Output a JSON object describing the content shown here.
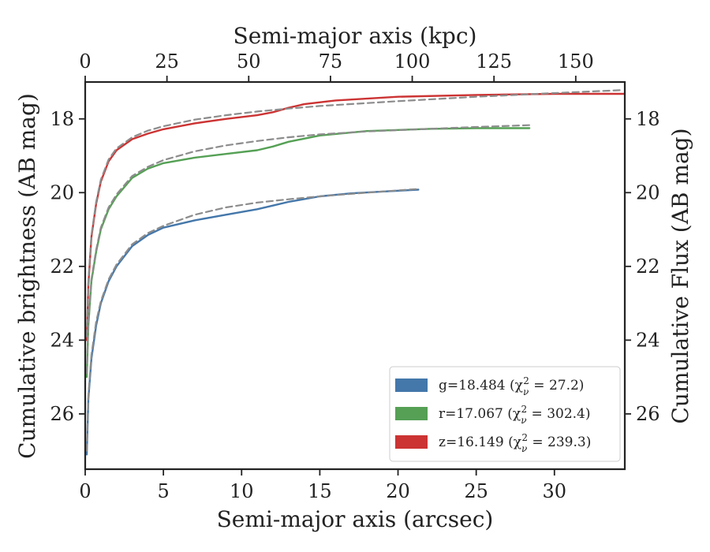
{
  "chart_data": {
    "type": "line",
    "xlabel": "Semi-major axis (arcsec)",
    "ylabel": "Cumulative brightness (AB mag)",
    "top_xlabel": "Semi-major axis (kpc)",
    "right_ylabel": "Cumulative Flux (AB mag)",
    "xlim": [
      0,
      34.5
    ],
    "ylim": [
      27.5,
      17.0
    ],
    "y_inverted": true,
    "top_xlim": [
      0,
      165
    ],
    "x_ticks": [
      0,
      5,
      10,
      15,
      20,
      25,
      30
    ],
    "y_ticks": [
      18,
      20,
      22,
      24,
      26
    ],
    "top_x_ticks": [
      0,
      25,
      50,
      75,
      100,
      125,
      150
    ],
    "grid": false,
    "legend_position": "lower-right",
    "series": [
      {
        "name": "g=18.484",
        "chi_prefix": "(χ",
        "chi_sub": "ν",
        "chi_sup": "2",
        "chi_value": " = 27.2)",
        "color": "#4477aa",
        "x": [
          0.1,
          0.2,
          0.4,
          0.7,
          1.0,
          1.5,
          2.0,
          3.0,
          4.0,
          5.0,
          7.0,
          9.0,
          11.0,
          12.0,
          13.0,
          15.0,
          17.0,
          19.0,
          21.3
        ],
        "y": [
          27.1,
          25.6,
          24.5,
          23.6,
          23.0,
          22.4,
          22.0,
          21.45,
          21.15,
          20.95,
          20.75,
          20.6,
          20.45,
          20.35,
          20.25,
          20.1,
          20.02,
          19.97,
          19.92
        ]
      },
      {
        "name": "r=17.067",
        "chi_prefix": "(χ",
        "chi_sub": "ν",
        "chi_sup": "2",
        "chi_value": " = 302.4)",
        "color": "#55a055",
        "x": [
          0.1,
          0.2,
          0.4,
          0.7,
          1.0,
          1.5,
          2.0,
          3.0,
          4.0,
          5.0,
          7.0,
          9.0,
          11.0,
          12.0,
          13.0,
          15.0,
          18.0,
          22.0,
          25.0,
          28.4
        ],
        "y": [
          25.0,
          23.6,
          22.4,
          21.6,
          21.0,
          20.45,
          20.1,
          19.6,
          19.35,
          19.2,
          19.05,
          18.95,
          18.85,
          18.75,
          18.62,
          18.45,
          18.33,
          18.27,
          18.25,
          18.25
        ]
      },
      {
        "name": "z=16.149",
        "chi_prefix": "(χ",
        "chi_sub": "ν",
        "chi_sup": "2",
        "chi_value": " = 239.3)",
        "color": "#cc3333",
        "x": [
          0.1,
          0.2,
          0.4,
          0.7,
          1.0,
          1.5,
          2.0,
          3.0,
          4.0,
          5.0,
          7.0,
          9.0,
          11.0,
          12.0,
          13.0,
          14.0,
          16.0,
          20.0,
          25.0,
          30.0,
          34.5
        ],
        "y": [
          24.0,
          22.5,
          21.2,
          20.3,
          19.7,
          19.15,
          18.85,
          18.55,
          18.4,
          18.28,
          18.12,
          18.0,
          17.9,
          17.82,
          17.7,
          17.6,
          17.5,
          17.4,
          17.35,
          17.32,
          17.32
        ]
      }
    ],
    "models": [
      {
        "color": "#8c8c8c",
        "style": "dashed",
        "x": [
          0.1,
          0.2,
          0.4,
          0.7,
          1.0,
          1.5,
          2.0,
          3.0,
          4.0,
          5.0,
          7.0,
          9.0,
          11.0,
          13.0,
          15.0,
          18.0,
          21.3
        ],
        "y": [
          27.0,
          25.5,
          24.4,
          23.5,
          22.95,
          22.35,
          21.95,
          21.4,
          21.1,
          20.9,
          20.6,
          20.4,
          20.27,
          20.18,
          20.1,
          20.0,
          19.9
        ]
      },
      {
        "color": "#8c8c8c",
        "style": "dashed",
        "x": [
          0.1,
          0.2,
          0.4,
          0.7,
          1.0,
          1.5,
          2.0,
          3.0,
          4.0,
          5.0,
          7.0,
          9.0,
          11.0,
          13.0,
          15.0,
          18.0,
          22.0,
          25.0,
          28.4
        ],
        "y": [
          24.9,
          23.5,
          22.35,
          21.55,
          20.95,
          20.4,
          20.05,
          19.55,
          19.3,
          19.12,
          18.88,
          18.72,
          18.6,
          18.5,
          18.42,
          18.34,
          18.27,
          18.22,
          18.17
        ]
      },
      {
        "color": "#8c8c8c",
        "style": "dashed",
        "x": [
          0.1,
          0.2,
          0.4,
          0.7,
          1.0,
          1.5,
          2.0,
          3.0,
          4.0,
          5.0,
          7.0,
          9.0,
          11.0,
          13.0,
          15.0,
          20.0,
          25.0,
          30.0,
          34.3
        ],
        "y": [
          23.9,
          22.4,
          21.15,
          20.25,
          19.65,
          19.1,
          18.8,
          18.5,
          18.32,
          18.2,
          18.02,
          17.9,
          17.8,
          17.72,
          17.65,
          17.52,
          17.4,
          17.3,
          17.22
        ]
      }
    ]
  }
}
